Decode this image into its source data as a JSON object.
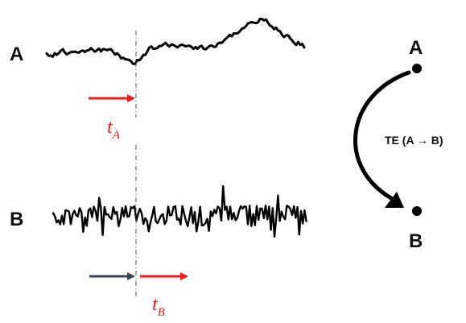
{
  "series": {
    "a": {
      "label": "A"
    },
    "b": {
      "label": "B"
    }
  },
  "time_labels": {
    "a": {
      "main": "t",
      "sub": "A"
    },
    "b": {
      "main": "t",
      "sub": "B"
    }
  },
  "graph": {
    "source_label": "A",
    "target_label": "B",
    "edge_label": "TE (A → B)"
  },
  "colors": {
    "signal": "#000000",
    "highlight_arrow": "#ee1c1c",
    "history_arrow": "#3a4452",
    "time_label": "#ee1c1c",
    "marker_line": "#555555"
  }
}
